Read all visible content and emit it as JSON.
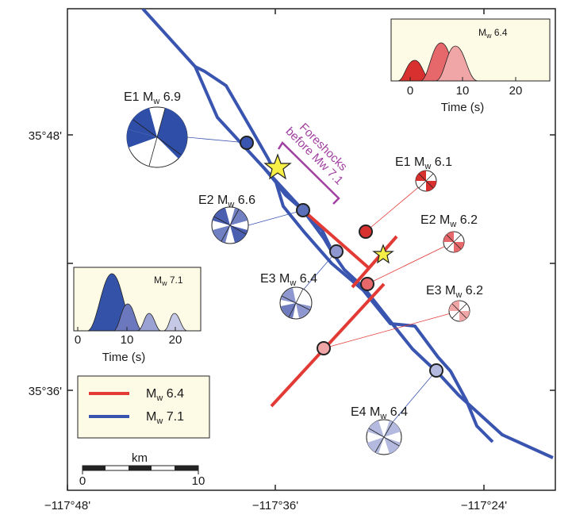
{
  "axes": {
    "x_ticks": [
      "−117°48'",
      "−117°36'",
      "−117°24'"
    ],
    "y_ticks": [
      "35°48'",
      "35°36'"
    ]
  },
  "annotation": {
    "line1": "Foreshocks",
    "line2": "before Mw 7.1"
  },
  "mechanisms_blue": [
    {
      "id": "E1",
      "mag": "6.9"
    },
    {
      "id": "E2",
      "mag": "6.6"
    },
    {
      "id": "E3",
      "mag": "6.4"
    },
    {
      "id": "E4",
      "mag": "6.4"
    }
  ],
  "mechanisms_red": [
    {
      "id": "E1",
      "mag": "6.1"
    },
    {
      "id": "E2",
      "mag": "6.2"
    },
    {
      "id": "E3",
      "mag": "6.2"
    }
  ],
  "mw_prefix": "M",
  "mw_sub": "w",
  "inset_64": {
    "title_mag": "6.4",
    "xticks": [
      "0",
      "10",
      "20"
    ],
    "xlabel": "Time (s)",
    "colors": [
      "#d8302f",
      "#e6686a",
      "#f0a6a6"
    ]
  },
  "inset_71": {
    "title_mag": "7.1",
    "xticks": [
      "0",
      "10",
      "20"
    ],
    "xlabel": "Time (s)",
    "colors": [
      "#3453a8",
      "#6b78bd",
      "#9aa2d3",
      "#c5c9e6"
    ]
  },
  "legend": {
    "items": [
      {
        "mag": "6.4",
        "color": "#e23b36"
      },
      {
        "mag": "7.1",
        "color": "#3a55b0"
      }
    ]
  },
  "scalebar": {
    "unit": "km",
    "ticks": [
      "0",
      "10"
    ]
  },
  "colors": {
    "fault_blue": "#3a55b0",
    "rupture_red": "#e23b36",
    "annotation_purple": "#a040a0",
    "star_yellow": "#f7ef45",
    "inset_bg": "#fdfbe6"
  }
}
